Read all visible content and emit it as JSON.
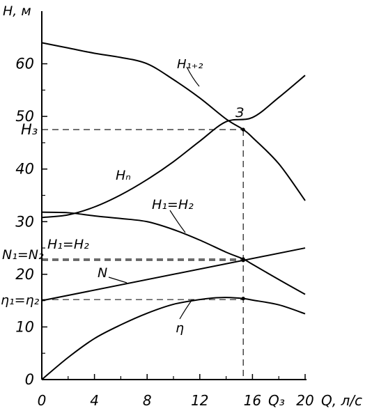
{
  "chart_data": {
    "type": "line",
    "x_axis": {
      "label": "Q, л/с",
      "range": [
        0,
        20
      ],
      "ticks": [
        "0",
        "4",
        "8",
        "12",
        "16",
        "20"
      ],
      "extra_tick_label": "Q₃"
    },
    "y_axis": {
      "label": "H, м",
      "range": [
        0,
        70
      ],
      "ticks": [
        "0",
        "10",
        "20",
        "30",
        "40",
        "50",
        "60"
      ]
    },
    "series": [
      {
        "name": "H₁₊₂",
        "x": [
          0,
          2,
          4,
          6,
          8,
          10,
          12,
          14,
          15.3,
          16,
          18,
          20
        ],
        "y": [
          64,
          63,
          62,
          61.2,
          60,
          57,
          53.5,
          49.5,
          47.5,
          46,
          41,
          34
        ]
      },
      {
        "name": "Hₙ",
        "x": [
          0,
          2,
          4,
          6,
          8,
          10,
          12,
          14,
          15.3,
          16,
          18,
          20
        ],
        "y": [
          30.8,
          31.3,
          32.8,
          35.1,
          38,
          41.4,
          45.3,
          49,
          47.5,
          49.8,
          53.6,
          57.8
        ]
      },
      {
        "name": "H₁=H₂",
        "x": [
          0,
          2,
          4,
          6,
          8,
          10,
          12,
          14,
          15.3,
          16,
          18,
          20
        ],
        "y": [
          31.8,
          31.7,
          31.1,
          30.6,
          30,
          28.5,
          26.5,
          24.2,
          22.9,
          21.9,
          19,
          16.2
        ]
      },
      {
        "name": "N",
        "x": [
          0,
          20
        ],
        "y": [
          15,
          25
        ]
      },
      {
        "name": "η",
        "x": [
          0,
          2,
          4,
          6,
          8,
          10,
          12,
          13,
          14,
          15.3,
          16,
          18,
          20
        ],
        "y": [
          0,
          4.2,
          7.8,
          10.4,
          12.6,
          14.3,
          15.2,
          15.5,
          15.6,
          15.4,
          15.1,
          14.2,
          12.5
        ]
      }
    ],
    "operating_point": {
      "label": "З",
      "x": 15.3,
      "y": 47.5
    },
    "reference_lines": [
      {
        "label": "Hз",
        "y": 47.5
      },
      {
        "label": "N₁=N₂",
        "y": 22.9
      },
      {
        "label": "η₁=η₂",
        "y": 15.2
      }
    ],
    "annotations": [
      "H₁+₂",
      "Hₙ",
      "H₁=H₂",
      "H₁=H₂",
      "N",
      "η",
      "З"
    ]
  },
  "labels": {
    "y_axis_title": "H, м",
    "x_axis_title": "Q, л/с",
    "q3": "Q₃",
    "h3": "H₃",
    "n12": "N₁=N₂",
    "eta12": "η₁=η₂",
    "point_z": "З",
    "h12_top": "H₁₊₂",
    "hn": "Hₙ",
    "h1h2_mid": "H₁=H₂",
    "h1h2_left": "H₁=H₂",
    "n": "N",
    "eta": "η"
  }
}
